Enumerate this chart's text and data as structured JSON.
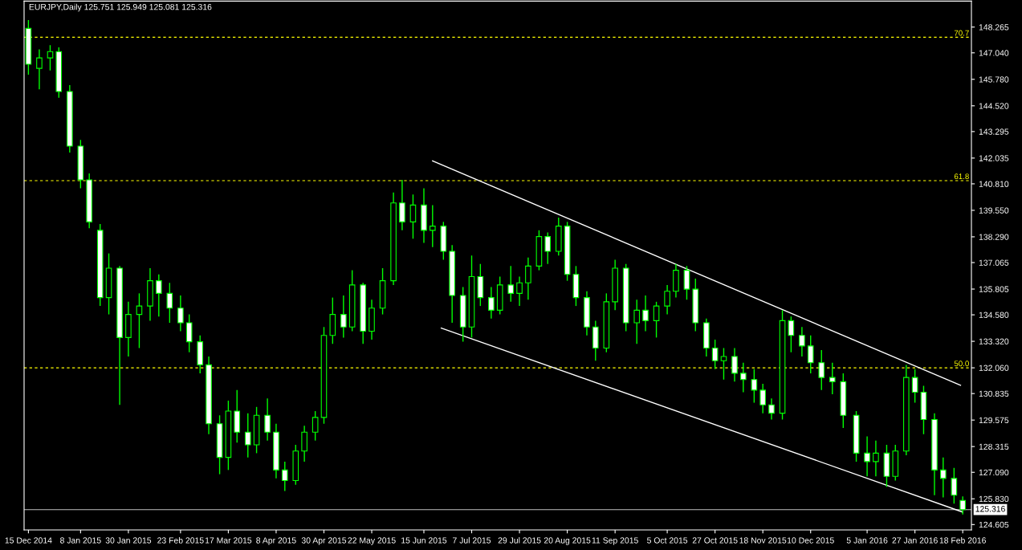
{
  "chart_data": {
    "type": "candlestick",
    "title": "EURJPY,Daily 125.751 125.949 125.081 125.316",
    "color": "#00ff00",
    "x": [
      "2014-12-15",
      "2014-12-20",
      "2014-12-25",
      "2014-12-29",
      "2015-01-03",
      "2015-01-08",
      "2015-01-12",
      "2015-01-17",
      "2015-01-21",
      "2015-01-26",
      "2015-01-30",
      "2015-02-04",
      "2015-02-09",
      "2015-02-13",
      "2015-02-18",
      "2015-02-23",
      "2015-02-27",
      "2015-03-04",
      "2015-03-08",
      "2015-03-13",
      "2015-03-17",
      "2015-03-21",
      "2015-03-26",
      "2015-03-30",
      "2015-04-04",
      "2015-04-08",
      "2015-04-12",
      "2015-04-17",
      "2015-04-21",
      "2015-04-26",
      "2015-04-30",
      "2015-05-04",
      "2015-05-09",
      "2015-05-13",
      "2015-05-18",
      "2015-05-22",
      "2015-05-27",
      "2015-06-01",
      "2015-06-05",
      "2015-06-10",
      "2015-06-15",
      "2015-06-19",
      "2015-06-24",
      "2015-06-28",
      "2015-07-03",
      "2015-07-07",
      "2015-07-11",
      "2015-07-16",
      "2015-07-20",
      "2015-07-25",
      "2015-07-29",
      "2015-08-02",
      "2015-08-07",
      "2015-08-11",
      "2015-08-16",
      "2015-08-20",
      "2015-08-24",
      "2015-08-29",
      "2015-09-02",
      "2015-09-07",
      "2015-09-11",
      "2015-09-16",
      "2015-09-21",
      "2015-09-25",
      "2015-09-30",
      "2015-10-05",
      "2015-10-09",
      "2015-10-14",
      "2015-10-18",
      "2015-10-23",
      "2015-10-27",
      "2015-10-31",
      "2015-11-05",
      "2015-11-09",
      "2015-11-14",
      "2015-11-18",
      "2015-11-22",
      "2015-11-27",
      "2015-12-01",
      "2015-12-06",
      "2015-12-10",
      "2015-12-15",
      "2015-12-20",
      "2015-12-25",
      "2015-12-31",
      "2016-01-05",
      "2016-01-09",
      "2016-01-14",
      "2016-01-18",
      "2016-01-23",
      "2016-01-27",
      "2016-01-31",
      "2016-02-05",
      "2016-02-09",
      "2016-02-14",
      "2016-02-18"
    ],
    "ohlc": [
      [
        148.2,
        148.6,
        146.0,
        146.5
      ],
      [
        146.3,
        147.2,
        145.3,
        146.8
      ],
      [
        146.8,
        147.4,
        146.2,
        147.1
      ],
      [
        147.1,
        147.3,
        144.9,
        145.2
      ],
      [
        145.2,
        145.5,
        142.3,
        142.6
      ],
      [
        142.6,
        142.9,
        140.6,
        141.0
      ],
      [
        141.0,
        141.3,
        138.7,
        139.0
      ],
      [
        138.6,
        138.9,
        135.0,
        135.4
      ],
      [
        135.4,
        137.5,
        134.6,
        136.8
      ],
      [
        136.8,
        136.9,
        130.3,
        133.5
      ],
      [
        133.5,
        135.2,
        132.6,
        134.6
      ],
      [
        134.6,
        135.6,
        133.0,
        135.0
      ],
      [
        135.0,
        136.8,
        134.3,
        136.2
      ],
      [
        136.2,
        136.5,
        134.5,
        135.6
      ],
      [
        135.6,
        136.1,
        134.2,
        134.9
      ],
      [
        134.9,
        135.5,
        133.8,
        134.2
      ],
      [
        134.2,
        134.6,
        132.8,
        133.3
      ],
      [
        133.3,
        133.6,
        131.8,
        132.2
      ],
      [
        132.2,
        132.6,
        128.9,
        129.4
      ],
      [
        129.4,
        129.8,
        127.0,
        127.8
      ],
      [
        127.8,
        130.5,
        127.2,
        130.0
      ],
      [
        130.0,
        131.0,
        128.5,
        129.0
      ],
      [
        129.0,
        129.9,
        127.8,
        128.4
      ],
      [
        128.4,
        130.2,
        128.0,
        129.8
      ],
      [
        129.8,
        130.6,
        128.6,
        129.0
      ],
      [
        129.0,
        129.4,
        126.8,
        127.2
      ],
      [
        127.2,
        127.6,
        126.2,
        126.7
      ],
      [
        126.7,
        128.4,
        126.5,
        128.1
      ],
      [
        128.1,
        129.3,
        127.6,
        129.0
      ],
      [
        129.0,
        130.0,
        128.6,
        129.7
      ],
      [
        129.7,
        134.0,
        129.4,
        133.6
      ],
      [
        133.6,
        135.4,
        133.2,
        134.6
      ],
      [
        134.6,
        135.5,
        133.5,
        134.0
      ],
      [
        134.0,
        136.7,
        133.8,
        136.0
      ],
      [
        136.0,
        136.1,
        133.2,
        133.8
      ],
      [
        133.8,
        135.3,
        133.4,
        134.9
      ],
      [
        134.9,
        136.8,
        134.6,
        136.2
      ],
      [
        136.2,
        140.4,
        136.0,
        139.9
      ],
      [
        139.9,
        141.0,
        138.6,
        139.0
      ],
      [
        139.0,
        140.3,
        138.2,
        139.8
      ],
      [
        139.8,
        140.6,
        138.0,
        138.6
      ],
      [
        138.6,
        139.8,
        137.8,
        138.8
      ],
      [
        138.8,
        139.0,
        137.2,
        137.6
      ],
      [
        137.6,
        137.9,
        134.2,
        135.5
      ],
      [
        135.5,
        135.9,
        133.3,
        134.0
      ],
      [
        134.0,
        137.4,
        133.5,
        136.4
      ],
      [
        136.4,
        137.0,
        135.0,
        135.4
      ],
      [
        135.4,
        135.9,
        134.4,
        134.8
      ],
      [
        134.8,
        136.4,
        134.6,
        136.0
      ],
      [
        136.0,
        136.9,
        135.2,
        135.6
      ],
      [
        135.6,
        136.4,
        135.0,
        136.1
      ],
      [
        136.1,
        137.3,
        135.3,
        136.9
      ],
      [
        136.9,
        138.6,
        136.7,
        138.3
      ],
      [
        138.3,
        138.5,
        137.0,
        137.6
      ],
      [
        137.6,
        139.2,
        137.4,
        138.8
      ],
      [
        138.8,
        139.0,
        136.2,
        136.5
      ],
      [
        136.5,
        136.9,
        135.0,
        135.4
      ],
      [
        135.4,
        135.7,
        133.6,
        134.0
      ],
      [
        134.0,
        134.3,
        132.4,
        133.0
      ],
      [
        133.0,
        135.6,
        132.8,
        135.2
      ],
      [
        135.2,
        137.2,
        134.8,
        136.8
      ],
      [
        136.8,
        137.0,
        133.8,
        134.2
      ],
      [
        134.2,
        135.3,
        133.2,
        134.8
      ],
      [
        134.8,
        135.5,
        133.8,
        134.3
      ],
      [
        134.3,
        135.2,
        133.5,
        135.0
      ],
      [
        135.0,
        136.0,
        134.6,
        135.7
      ],
      [
        135.7,
        137.0,
        135.4,
        136.7
      ],
      [
        136.7,
        136.9,
        135.3,
        135.8
      ],
      [
        135.8,
        136.3,
        133.8,
        134.2
      ],
      [
        134.2,
        134.4,
        132.6,
        133.0
      ],
      [
        133.0,
        133.4,
        132.0,
        132.4
      ],
      [
        132.4,
        133.0,
        131.5,
        132.6
      ],
      [
        132.6,
        133.0,
        131.4,
        131.8
      ],
      [
        131.8,
        132.3,
        130.9,
        131.5
      ],
      [
        131.5,
        132.0,
        130.4,
        131.0
      ],
      [
        131.0,
        131.3,
        129.9,
        130.3
      ],
      [
        130.3,
        130.6,
        129.6,
        129.9
      ],
      [
        129.9,
        134.8,
        129.6,
        134.3
      ],
      [
        134.3,
        134.5,
        132.8,
        133.6
      ],
      [
        133.6,
        134.0,
        132.6,
        133.1
      ],
      [
        133.1,
        133.6,
        131.8,
        132.3
      ],
      [
        132.3,
        132.9,
        131.0,
        131.6
      ],
      [
        131.6,
        132.3,
        130.8,
        131.4
      ],
      [
        131.4,
        131.8,
        129.2,
        129.8
      ],
      [
        129.8,
        130.0,
        127.6,
        128.0
      ],
      [
        128.0,
        128.8,
        126.9,
        127.6
      ],
      [
        127.6,
        128.6,
        126.9,
        128.0
      ],
      [
        128.0,
        128.4,
        126.4,
        126.9
      ],
      [
        126.9,
        128.4,
        126.7,
        128.1
      ],
      [
        128.1,
        132.2,
        127.9,
        131.6
      ],
      [
        131.6,
        132.0,
        130.4,
        130.9
      ],
      [
        130.9,
        131.2,
        128.9,
        129.6
      ],
      [
        129.6,
        129.9,
        126.0,
        127.2
      ],
      [
        127.2,
        127.8,
        125.9,
        126.8
      ],
      [
        126.8,
        127.3,
        125.6,
        126.0
      ],
      [
        125.751,
        125.949,
        125.081,
        125.316
      ]
    ],
    "series": [
      {
        "type": "line",
        "color": "#ffffff",
        "x": [
          "2015-06-19",
          "2016-02-17"
        ],
        "values": [
          141.9,
          131.23
        ]
      },
      {
        "type": "line",
        "color": "#ffffff",
        "x": [
          "2015-06-23",
          "2016-02-18"
        ],
        "values": [
          133.95,
          125.2
        ]
      }
    ],
    "xlim": [
      "2014-12-13",
      "2016-02-22"
    ],
    "ylim": [
      124.35,
      149.5
    ],
    "xticks": [
      {
        "value": "2014-12-15",
        "label": "15 Dec 2014"
      },
      {
        "value": "2015-01-08",
        "label": "8 Jan 2015"
      },
      {
        "value": "2015-01-30",
        "label": "30 Jan 2015"
      },
      {
        "value": "2015-02-23",
        "label": "23 Feb 2015"
      },
      {
        "value": "2015-03-17",
        "label": "17 Mar 2015"
      },
      {
        "value": "2015-04-08",
        "label": "8 Apr 2015"
      },
      {
        "value": "2015-04-30",
        "label": "30 Apr 2015"
      },
      {
        "value": "2015-05-22",
        "label": "22 May 2015"
      },
      {
        "value": "2015-06-15",
        "label": "15 Jun 2015"
      },
      {
        "value": "2015-07-07",
        "label": "7 Jul 2015"
      },
      {
        "value": "2015-07-29",
        "label": "29 Jul 2015"
      },
      {
        "value": "2015-08-20",
        "label": "20 Aug 2015"
      },
      {
        "value": "2015-09-11",
        "label": "11 Sep 2015"
      },
      {
        "value": "2015-10-05",
        "label": "5 Oct 2015"
      },
      {
        "value": "2015-10-27",
        "label": "27 Oct 2015"
      },
      {
        "value": "2015-11-18",
        "label": "18 Nov 2015"
      },
      {
        "value": "2015-12-10",
        "label": "10 Dec 2015"
      },
      {
        "value": "2016-01-05",
        "label": "5 Jan 2016"
      },
      {
        "value": "2016-01-27",
        "label": "27 Jan 2016"
      },
      {
        "value": "2016-02-18",
        "label": "18 Feb 2016"
      }
    ],
    "yticks": [
      {
        "value": 124.605,
        "label": "124.605"
      },
      {
        "value": 125.83,
        "label": "125.830"
      },
      {
        "value": 127.09,
        "label": "127.090"
      },
      {
        "value": 128.315,
        "label": "128.315"
      },
      {
        "value": 129.575,
        "label": "129.575"
      },
      {
        "value": 130.835,
        "label": "130.835"
      },
      {
        "value": 132.06,
        "label": "132.060"
      },
      {
        "value": 133.32,
        "label": "133.320"
      },
      {
        "value": 134.58,
        "label": "134.580"
      },
      {
        "value": 135.805,
        "label": "135.805"
      },
      {
        "value": 137.065,
        "label": "137.065"
      },
      {
        "value": 138.29,
        "label": "138.290"
      },
      {
        "value": 139.55,
        "label": "139.550"
      },
      {
        "value": 140.81,
        "label": "140.810"
      },
      {
        "value": 142.035,
        "label": "142.035"
      },
      {
        "value": 143.295,
        "label": "143.295"
      },
      {
        "value": 144.52,
        "label": "144.520"
      },
      {
        "value": 145.78,
        "label": "145.780"
      },
      {
        "value": 147.04,
        "label": "147.040"
      },
      {
        "value": 148.265,
        "label": "148.265"
      }
    ],
    "annotations": [
      {
        "text": "70.7",
        "x": "2016-02-21",
        "y": 147.78
      },
      {
        "text": "61.8",
        "x": "2016-02-21",
        "y": 140.96
      },
      {
        "text": "50.0",
        "x": "2016-02-21",
        "y": 132.06
      }
    ],
    "ref_lines": [
      {
        "axis": "y",
        "value": 147.78,
        "color": "#ffff00",
        "line_style": "dashed"
      },
      {
        "axis": "y",
        "value": 140.96,
        "color": "#ffff00",
        "line_style": "dashed"
      },
      {
        "axis": "y",
        "value": 132.06,
        "color": "#ffff00",
        "line_style": "dashed"
      },
      {
        "axis": "y",
        "value": 125.316,
        "label": "125.316",
        "color": "#c0c0c0",
        "line_style": "solid"
      }
    ],
    "grid": false,
    "legend": false
  }
}
